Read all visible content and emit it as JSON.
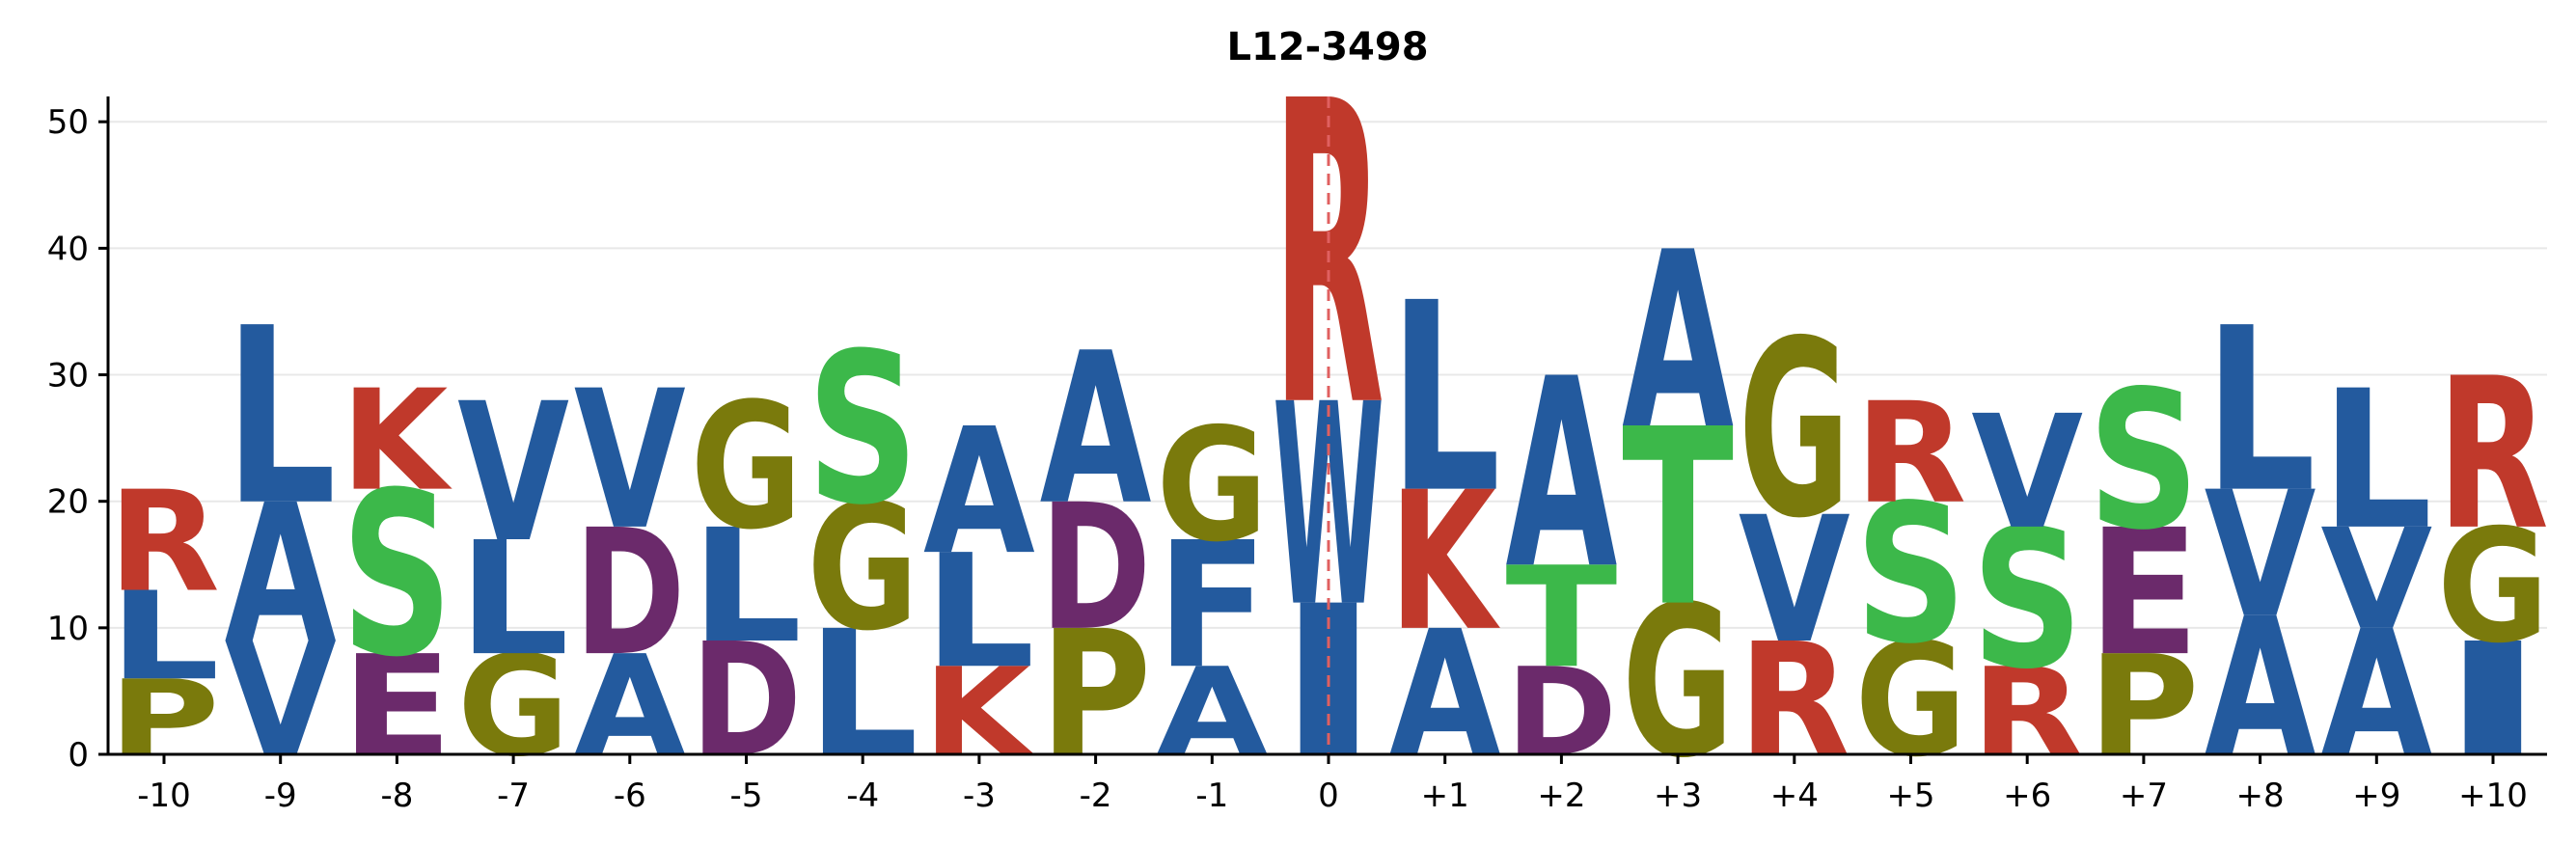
{
  "chart_data": {
    "type": "sequence-logo",
    "title": "L12-3498",
    "xlabel": "",
    "ylabel": "",
    "ylim": [
      0,
      52
    ],
    "yticks": [
      0,
      10,
      20,
      30,
      40,
      50
    ],
    "grid": true,
    "positions": [
      "-10",
      "-9",
      "-8",
      "-7",
      "-6",
      "-5",
      "-4",
      "-3",
      "-2",
      "-1",
      "0",
      "+1",
      "+2",
      "+3",
      "+4",
      "+5",
      "+6",
      "+7",
      "+8",
      "+9",
      "+10"
    ],
    "center_marker": "0",
    "colors": {
      "R": "#c0392b",
      "K": "#c0392b",
      "L": "#235a9e",
      "A": "#235a9e",
      "V": "#235a9e",
      "F": "#235a9e",
      "W": "#235a9e",
      "I": "#235a9e",
      "S": "#3cb84a",
      "T": "#3cb84a",
      "G": "#7a7a0c",
      "P": "#7a7a0c",
      "D": "#6b2a6b",
      "E": "#6b2a6b"
    },
    "stacks": [
      [
        {
          "letter": "P",
          "value": 6
        },
        {
          "letter": "L",
          "value": 7
        },
        {
          "letter": "R",
          "value": 8
        }
      ],
      [
        {
          "letter": "V",
          "value": 9
        },
        {
          "letter": "A",
          "value": 11
        },
        {
          "letter": "L",
          "value": 14
        }
      ],
      [
        {
          "letter": "E",
          "value": 8
        },
        {
          "letter": "S",
          "value": 13
        },
        {
          "letter": "K",
          "value": 8
        }
      ],
      [
        {
          "letter": "G",
          "value": 8
        },
        {
          "letter": "L",
          "value": 9
        },
        {
          "letter": "V",
          "value": 11
        }
      ],
      [
        {
          "letter": "A",
          "value": 8
        },
        {
          "letter": "D",
          "value": 10
        },
        {
          "letter": "V",
          "value": 11
        }
      ],
      [
        {
          "letter": "D",
          "value": 9
        },
        {
          "letter": "L",
          "value": 9
        },
        {
          "letter": "G",
          "value": 10
        }
      ],
      [
        {
          "letter": "L",
          "value": 10
        },
        {
          "letter": "G",
          "value": 10
        },
        {
          "letter": "S",
          "value": 12
        }
      ],
      [
        {
          "letter": "K",
          "value": 7
        },
        {
          "letter": "L",
          "value": 9
        },
        {
          "letter": "A",
          "value": 10
        }
      ],
      [
        {
          "letter": "P",
          "value": 10
        },
        {
          "letter": "D",
          "value": 10
        },
        {
          "letter": "A",
          "value": 12
        }
      ],
      [
        {
          "letter": "A",
          "value": 7
        },
        {
          "letter": "F",
          "value": 10
        },
        {
          "letter": "G",
          "value": 9
        }
      ],
      [
        {
          "letter": "I",
          "value": 12
        },
        {
          "letter": "W",
          "value": 16
        },
        {
          "letter": "R",
          "value": 24
        }
      ],
      [
        {
          "letter": "A",
          "value": 10
        },
        {
          "letter": "K",
          "value": 11
        },
        {
          "letter": "L",
          "value": 15
        }
      ],
      [
        {
          "letter": "D",
          "value": 7
        },
        {
          "letter": "T",
          "value": 8
        },
        {
          "letter": "A",
          "value": 15
        }
      ],
      [
        {
          "letter": "G",
          "value": 12
        },
        {
          "letter": "T",
          "value": 14
        },
        {
          "letter": "A",
          "value": 14
        }
      ],
      [
        {
          "letter": "R",
          "value": 9
        },
        {
          "letter": "V",
          "value": 10
        },
        {
          "letter": "G",
          "value": 14
        }
      ],
      [
        {
          "letter": "G",
          "value": 9
        },
        {
          "letter": "S",
          "value": 11
        },
        {
          "letter": "R",
          "value": 8
        }
      ],
      [
        {
          "letter": "R",
          "value": 7
        },
        {
          "letter": "S",
          "value": 11
        },
        {
          "letter": "V",
          "value": 9
        }
      ],
      [
        {
          "letter": "P",
          "value": 8
        },
        {
          "letter": "E",
          "value": 10
        },
        {
          "letter": "S",
          "value": 11
        }
      ],
      [
        {
          "letter": "A",
          "value": 11
        },
        {
          "letter": "V",
          "value": 10
        },
        {
          "letter": "L",
          "value": 13
        }
      ],
      [
        {
          "letter": "A",
          "value": 10
        },
        {
          "letter": "V",
          "value": 8
        },
        {
          "letter": "L",
          "value": 11
        }
      ],
      [
        {
          "letter": "I",
          "value": 9
        },
        {
          "letter": "G",
          "value": 9
        },
        {
          "letter": "R",
          "value": 12
        }
      ]
    ]
  }
}
